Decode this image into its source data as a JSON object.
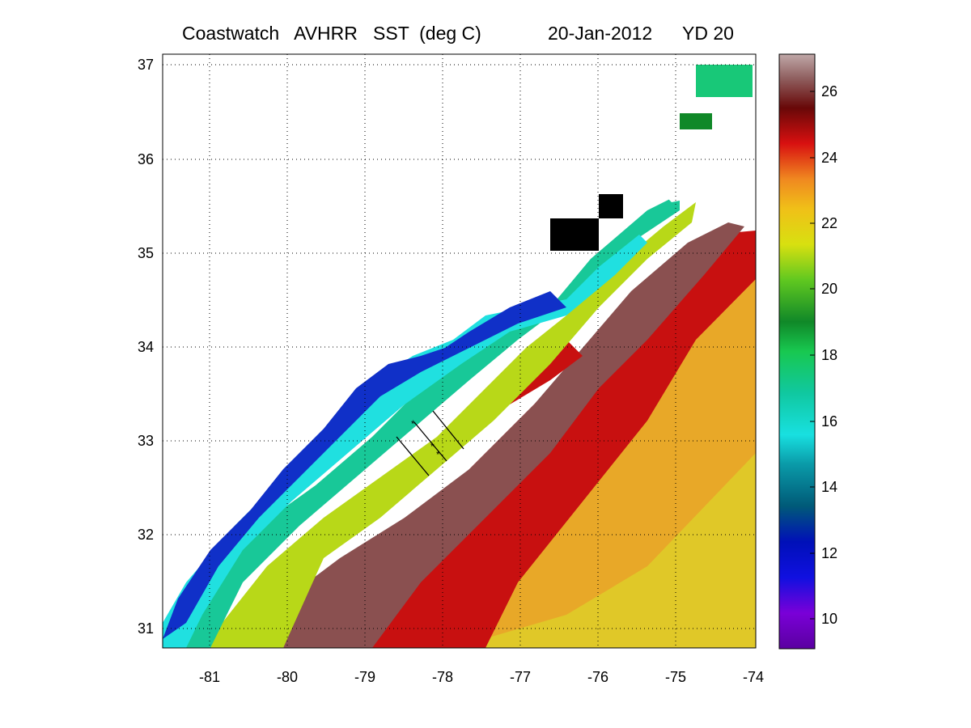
{
  "title": {
    "text": "Coastwatch   AVHRR   SST  (deg C)",
    "date": "20-Jan-2012",
    "yearday": "YD 20"
  },
  "map": {
    "lon_range": [
      -81.6,
      -74
    ],
    "lat_range": [
      30.8,
      37.1
    ],
    "lon_ticks": [
      "-81",
      "-80",
      "-79",
      "-78",
      "-77",
      "-76",
      "-75",
      "-74"
    ],
    "lat_ticks": [
      "37",
      "36",
      "35",
      "34",
      "33",
      "32",
      "31"
    ],
    "grid": "dotted"
  },
  "colorbar": {
    "min": 9,
    "max": 27,
    "tick_labels": [
      "26",
      "24",
      "22",
      "20",
      "18",
      "16",
      "14",
      "12",
      "10"
    ],
    "colors": {
      "violet": "#7a00d8",
      "blue": "#0010d0",
      "dark_teal": "#006a80",
      "cyan": "#18e0e0",
      "green": "#18c850",
      "dark_green": "#108828",
      "lime": "#80d818",
      "yellow": "#e0e010",
      "orange": "#f08820",
      "red": "#d81010",
      "dark_red": "#680808",
      "brown": "#844848",
      "pink_gray": "#c0a8a8"
    }
  },
  "chart_data": {
    "type": "heatmap",
    "title": "Coastwatch   AVHRR   SST  (deg C)",
    "xlim": [
      -81.6,
      -74
    ],
    "ylim": [
      30.8,
      37.1
    ],
    "colorbar_range": [
      9,
      27
    ],
    "colorbar_ticks": [
      10,
      12,
      14,
      16,
      18,
      20,
      22,
      24,
      26
    ]
  }
}
